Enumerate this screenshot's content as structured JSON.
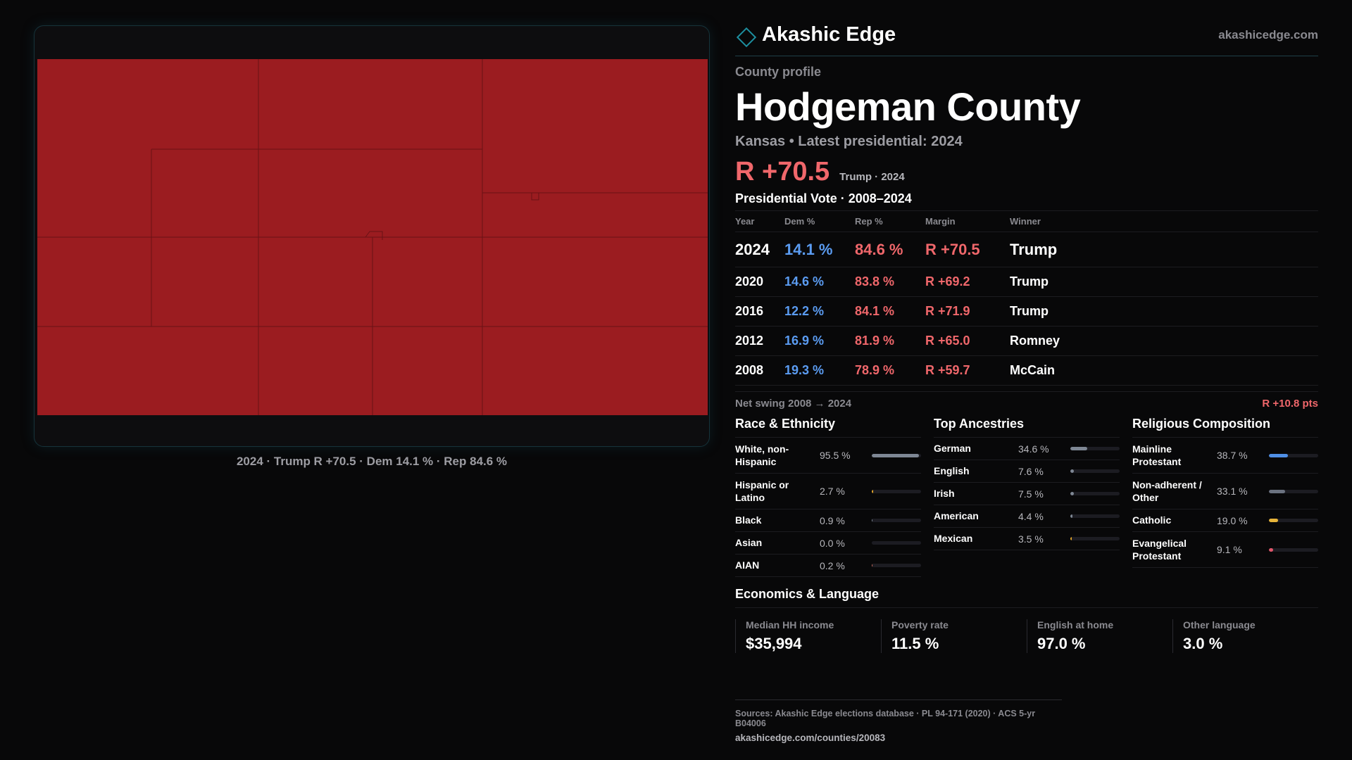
{
  "brand": {
    "name": "Akashic Edge",
    "url": "akashicedge.com"
  },
  "profile": {
    "eyebrow": "County profile",
    "title": "Hodgeman County",
    "subhead": "Kansas • Latest presidential: 2024",
    "headline_margin": "R +70.5",
    "headline_note": "Trump · 2024"
  },
  "map": {
    "caption": "2024 · Trump R +70.5 · Dem 14.1 % · Rep 84.6 %",
    "fill_color": "#9b1c20",
    "line_color": "#5e1013"
  },
  "votes": {
    "title": "Presidential Vote · 2008–2024",
    "headers": {
      "year": "Year",
      "dem": "Dem %",
      "rep": "Rep %",
      "margin": "Margin",
      "winner": "Winner"
    },
    "rows": [
      {
        "year": "2024",
        "dem": "14.1 %",
        "rep": "84.6 %",
        "margin": "R +70.5",
        "winner": "Trump"
      },
      {
        "year": "2020",
        "dem": "14.6 %",
        "rep": "83.8 %",
        "margin": "R +69.2",
        "winner": "Trump"
      },
      {
        "year": "2016",
        "dem": "12.2 %",
        "rep": "84.1 %",
        "margin": "R +71.9",
        "winner": "Trump"
      },
      {
        "year": "2012",
        "dem": "16.9 %",
        "rep": "81.9 %",
        "margin": "R +65.0",
        "winner": "Romney"
      },
      {
        "year": "2008",
        "dem": "19.3 %",
        "rep": "78.9 %",
        "margin": "R +59.7",
        "winner": "McCain"
      }
    ],
    "swing_label": "Net swing 2008 → 2024",
    "swing_value": "R +10.8 pts"
  },
  "race": {
    "title": "Race & Ethnicity",
    "items": [
      {
        "label": "White, non-Hispanic",
        "value": "95.5 %",
        "share": 0.955,
        "color": "#7e8794"
      },
      {
        "label": "Hispanic or Latino",
        "value": "2.7 %",
        "share": 0.027,
        "color": "#e0a42a"
      },
      {
        "label": "Black",
        "value": "0.9 %",
        "share": 0.009,
        "color": "#7e8794"
      },
      {
        "label": "Asian",
        "value": "0.0 %",
        "share": 0.0,
        "color": "#7e8794"
      },
      {
        "label": "AIAN",
        "value": "0.2 %",
        "share": 0.002,
        "color": "#c96a5a"
      }
    ]
  },
  "ancestry": {
    "title": "Top Ancestries",
    "items": [
      {
        "label": "German",
        "value": "34.6 %",
        "share": 0.346,
        "color": "#7e8794"
      },
      {
        "label": "English",
        "value": "7.6 %",
        "share": 0.076,
        "color": "#7e8794"
      },
      {
        "label": "Irish",
        "value": "7.5 %",
        "share": 0.075,
        "color": "#7e8794"
      },
      {
        "label": "American",
        "value": "4.4 %",
        "share": 0.044,
        "color": "#7e8794"
      },
      {
        "label": "Mexican",
        "value": "3.5 %",
        "share": 0.035,
        "color": "#e0a42a"
      }
    ]
  },
  "religion": {
    "title": "Religious Composition",
    "items": [
      {
        "label": "Mainline Protestant",
        "value": "38.7 %",
        "share": 0.387,
        "color": "#4f8fe6"
      },
      {
        "label": "Non-adherent / Other",
        "value": "33.1 %",
        "share": 0.331,
        "color": "#6b7280"
      },
      {
        "label": "Catholic",
        "value": "19.0 %",
        "share": 0.19,
        "color": "#e7b43a"
      },
      {
        "label": "Evangelical Protestant",
        "value": "9.1 %",
        "share": 0.091,
        "color": "#e0566a"
      }
    ]
  },
  "economics": {
    "title": "Economics & Language",
    "cells": [
      {
        "label": "Median HH income",
        "value": "$35,994"
      },
      {
        "label": "Poverty rate",
        "value": "11.5 %"
      },
      {
        "label": "English at home",
        "value": "97.0 %"
      },
      {
        "label": "Other language",
        "value": "3.0 %"
      }
    ]
  },
  "footer": {
    "sources": "Sources: Akashic Edge elections database · PL 94-171 (2020) · ACS 5-yr B04006",
    "url": "akashicedge.com/counties/20083"
  }
}
